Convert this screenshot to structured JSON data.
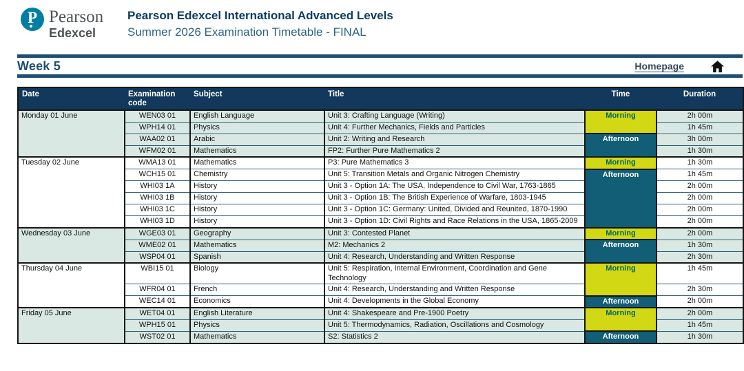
{
  "header": {
    "logo_letter": "P",
    "brand": "Pearson",
    "brand_sub": "Edexcel",
    "title": "Pearson Edexcel International Advanced Levels",
    "subtitle": "Summer 2026 Examination Timetable - FINAL"
  },
  "week_bar": {
    "week_label": "Week 5",
    "homepage_label": "Homepage",
    "home_icon": "home-icon"
  },
  "timetable": {
    "columns": [
      "Date",
      "Examination code",
      "Subject",
      "Title",
      "Time",
      "Duration"
    ],
    "days": [
      {
        "date": "Monday 01 June",
        "shaded": true,
        "sessions": [
          {
            "label": "Morning",
            "rows": 2
          },
          {
            "label": "Afternoon",
            "rows": 2
          }
        ],
        "rows": [
          {
            "code": "WEN03 01",
            "subject": "English Language",
            "title": "Unit 3: Crafting Language (Writing)",
            "duration": "2h 00m"
          },
          {
            "code": "WPH14 01",
            "subject": "Physics",
            "title": "Unit 4: Further Mechanics, Fields and Particles",
            "duration": "1h 45m"
          },
          {
            "code": "WAA02 01",
            "subject": "Arabic",
            "title": "Unit 2: Writing and Research",
            "duration": "3h 00m"
          },
          {
            "code": "WFM02 01",
            "subject": "Mathematics",
            "title": "FP2: Further Pure Mathematics 2",
            "duration": "1h 30m"
          }
        ]
      },
      {
        "date": "Tuesday 02 June",
        "shaded": false,
        "sessions": [
          {
            "label": "Morning",
            "rows": 1
          },
          {
            "label": "Afternoon",
            "rows": 5
          }
        ],
        "rows": [
          {
            "code": "WMA13 01",
            "subject": "Mathematics",
            "title": "P3: Pure Mathematics 3",
            "duration": "1h 30m"
          },
          {
            "code": "WCH15 01",
            "subject": "Chemistry",
            "title": "Unit 5: Transition Metals and Organic Nitrogen Chemistry",
            "duration": "1h 45m"
          },
          {
            "code": "WHI03 1A",
            "subject": "History",
            "title": "Unit 3 - Option 1A: The USA, Independence to Civil War, 1763-1865",
            "duration": "2h 00m"
          },
          {
            "code": "WHI03 1B",
            "subject": "History",
            "title": "Unit 3 - Option 1B: The British Experience of Warfare, 1803-1945",
            "duration": "2h 00m"
          },
          {
            "code": "WHI03 1C",
            "subject": "History",
            "title": "Unit 3 - Option 1C: Germany: United, Divided and Reunited, 1870-1990",
            "duration": "2h 00m"
          },
          {
            "code": "WHI03 1D",
            "subject": "History",
            "title": "Unit 3 - Option 1D: Civil Rights and Race Relations in the USA, 1865-2009",
            "duration": "2h 00m"
          }
        ]
      },
      {
        "date": "Wednesday 03 June",
        "shaded": true,
        "sessions": [
          {
            "label": "Morning",
            "rows": 1
          },
          {
            "label": "Afternoon",
            "rows": 2
          }
        ],
        "rows": [
          {
            "code": "WGE03 01",
            "subject": "Geography",
            "title": "Unit 3: Contested Planet",
            "duration": "2h 00m"
          },
          {
            "code": "WME02 01",
            "subject": "Mathematics",
            "title": "M2: Mechanics 2",
            "duration": "1h 30m"
          },
          {
            "code": "WSP04 01",
            "subject": "Spanish",
            "title": "Unit 4: Research, Understanding and Written Response",
            "duration": "2h 30m"
          }
        ]
      },
      {
        "date": "Thursday 04 June",
        "shaded": false,
        "sessions": [
          {
            "label": "Morning",
            "rows": 2
          },
          {
            "label": "Afternoon",
            "rows": 1
          }
        ],
        "rows": [
          {
            "code": "WBI15 01",
            "subject": "Biology",
            "title": "Unit 5: Respiration, Internal Environment, Coordination and Gene Technology",
            "duration": "1h 45m"
          },
          {
            "code": "WFR04 01",
            "subject": "French",
            "title": "Unit 4: Research, Understanding and Written Response",
            "duration": "2h 30m"
          },
          {
            "code": "WEC14 01",
            "subject": "Economics",
            "title": "Unit 4: Developments in the Global Economy",
            "duration": "2h 00m"
          }
        ]
      },
      {
        "date": "Friday 05 June",
        "shaded": true,
        "sessions": [
          {
            "label": "Morning",
            "rows": 2
          },
          {
            "label": "Afternoon",
            "rows": 1
          }
        ],
        "rows": [
          {
            "code": "WET04 01",
            "subject": "English Literature",
            "title": "Unit 4: Shakespeare and Pre-1900 Poetry",
            "duration": "2h 00m"
          },
          {
            "code": "WPH15 01",
            "subject": "Physics",
            "title": "Unit 5: Thermodynamics, Radiation, Oscillations and Cosmology",
            "duration": "1h 45m"
          },
          {
            "code": "WST02 01",
            "subject": "Mathematics",
            "title": "S2: Statistics 2",
            "duration": "1h 30m"
          }
        ]
      }
    ]
  },
  "colors": {
    "accent_navy": "#1d4e74",
    "title_navy": "#0d3c63",
    "subtitle_blue": "#2e6386",
    "logo_teal": "#007fa3",
    "brand_gray": "#4f5356",
    "table_header_bg": "#12395c",
    "row_shaded": "#d9e8e3",
    "morning_bg": "#d3d814",
    "morning_text": "#00685a",
    "afternoon_bg": "#115e76",
    "border_dark": "#151515",
    "border_teal": "#2c6076"
  }
}
